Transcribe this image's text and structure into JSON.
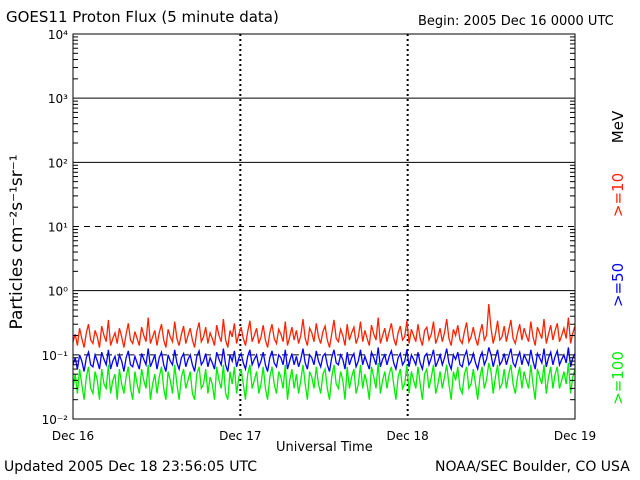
{
  "header": {
    "title": "GOES11 Proton Flux (5 minute data)",
    "begin": "Begin: 2005 Dec 16 0000 UTC"
  },
  "footer": {
    "updated": "Updated 2005 Dec 18 23:56:05 UTC",
    "credit": "NOAA/SEC Boulder, CO USA"
  },
  "chart_data": {
    "type": "line",
    "xlabel": "Universal Time",
    "ylabel": "Particles cm⁻²s⁻¹sr⁻¹",
    "x_ticks": [
      "Dec 16",
      "Dec 17",
      "Dec 18",
      "Dec 19"
    ],
    "y_scale": "log",
    "ylim": [
      0.01,
      10000
    ],
    "y_ticks": [
      "10⁻²",
      "10⁻¹",
      "10⁰",
      "10¹",
      "10²",
      "10³",
      "10⁴"
    ],
    "legend_unit": "MeV",
    "x_days": 3,
    "series": [
      {
        "name": ">=10",
        "color": "#ff2200",
        "values": [
          0.16,
          0.21,
          0.14,
          0.26,
          0.18,
          0.13,
          0.22,
          0.3,
          0.17,
          0.15,
          0.24,
          0.19,
          0.13,
          0.28,
          0.2,
          0.16,
          0.35,
          0.14,
          0.18,
          0.22,
          0.15,
          0.26,
          0.19,
          0.13,
          0.21,
          0.31,
          0.17,
          0.15,
          0.23,
          0.18,
          0.14,
          0.27,
          0.2,
          0.16,
          0.38,
          0.15,
          0.19,
          0.24,
          0.14,
          0.22,
          0.3,
          0.17,
          0.13,
          0.25,
          0.19,
          0.16,
          0.33,
          0.18,
          0.14,
          0.21,
          0.28,
          0.15,
          0.2,
          0.26,
          0.17,
          0.13,
          0.23,
          0.32,
          0.16,
          0.19,
          0.27,
          0.15,
          0.22,
          0.18,
          0.14,
          0.29,
          0.2,
          0.16,
          0.36,
          0.17,
          0.13,
          0.24,
          0.19,
          0.31,
          0.15,
          0.21,
          0.27,
          0.18,
          0.14,
          0.23,
          0.34,
          0.16,
          0.2,
          0.26,
          0.15,
          0.19,
          0.29,
          0.17,
          0.13,
          0.22,
          0.3,
          0.18,
          0.15,
          0.25,
          0.21,
          0.16,
          0.33,
          0.14,
          0.19,
          0.27,
          0.17,
          0.24,
          0.15,
          0.2,
          0.36,
          0.18,
          0.14,
          0.26,
          0.22,
          0.16,
          0.31,
          0.19,
          0.15,
          0.23,
          0.28,
          0.17,
          0.13,
          0.21,
          0.35,
          0.18,
          0.16,
          0.25,
          0.2,
          0.14,
          0.3,
          0.17,
          0.22,
          0.27,
          0.15,
          0.19,
          0.33,
          0.16,
          0.24,
          0.18,
          0.14,
          0.29,
          0.21,
          0.17,
          0.38,
          0.15,
          0.2,
          0.26,
          0.16,
          0.23,
          0.31,
          0.18,
          0.14,
          0.22,
          0.28,
          0.17,
          0.19,
          0.34,
          0.15,
          0.25,
          0.2,
          0.16,
          0.3,
          0.18,
          0.14,
          0.24,
          0.27,
          0.17,
          0.21,
          0.33,
          0.15,
          0.19,
          0.26,
          0.16,
          0.22,
          0.36,
          0.18,
          0.14,
          0.25,
          0.2,
          0.29,
          0.17,
          0.15,
          0.23,
          0.32,
          0.16,
          0.19,
          0.27,
          0.18,
          0.14,
          0.22,
          0.3,
          0.17,
          0.2,
          0.62,
          0.26,
          0.15,
          0.21,
          0.34,
          0.17,
          0.19,
          0.28,
          0.16,
          0.24,
          0.35,
          0.18,
          0.15,
          0.22,
          0.3,
          0.17,
          0.26,
          0.2,
          0.16,
          0.33,
          0.19,
          0.14,
          0.27,
          0.22,
          0.18,
          0.36,
          0.15,
          0.21,
          0.29,
          0.17,
          0.24,
          0.31,
          0.16,
          0.2,
          0.26,
          0.18,
          0.38,
          0.15,
          0.22,
          0.28
        ]
      },
      {
        "name": ">=50",
        "color": "#0000ff",
        "values": [
          0.07,
          0.09,
          0.06,
          0.1,
          0.08,
          0.055,
          0.09,
          0.11,
          0.07,
          0.065,
          0.1,
          0.08,
          0.06,
          0.11,
          0.085,
          0.07,
          0.12,
          0.06,
          0.08,
          0.095,
          0.065,
          0.1,
          0.08,
          0.055,
          0.09,
          0.115,
          0.07,
          0.065,
          0.095,
          0.075,
          0.06,
          0.105,
          0.085,
          0.07,
          0.125,
          0.065,
          0.08,
          0.1,
          0.06,
          0.09,
          0.11,
          0.07,
          0.055,
          0.1,
          0.08,
          0.07,
          0.12,
          0.075,
          0.06,
          0.09,
          0.105,
          0.065,
          0.085,
          0.1,
          0.07,
          0.055,
          0.095,
          0.115,
          0.07,
          0.08,
          0.105,
          0.065,
          0.09,
          0.075,
          0.06,
          0.11,
          0.085,
          0.07,
          0.125,
          0.07,
          0.055,
          0.1,
          0.08,
          0.115,
          0.065,
          0.09,
          0.105,
          0.075,
          0.06,
          0.095,
          0.12,
          0.07,
          0.085,
          0.1,
          0.065,
          0.08,
          0.11,
          0.07,
          0.055,
          0.09,
          0.115,
          0.075,
          0.065,
          0.1,
          0.09,
          0.07,
          0.12,
          0.06,
          0.08,
          0.105,
          0.07,
          0.095,
          0.065,
          0.085,
          0.125,
          0.075,
          0.06,
          0.1,
          0.09,
          0.07,
          0.115,
          0.08,
          0.065,
          0.095,
          0.105,
          0.07,
          0.055,
          0.09,
          0.12,
          0.075,
          0.07,
          0.1,
          0.085,
          0.06,
          0.11,
          0.07,
          0.09,
          0.105,
          0.065,
          0.08,
          0.12,
          0.07,
          0.095,
          0.075,
          0.06,
          0.11,
          0.09,
          0.07,
          0.13,
          0.065,
          0.085,
          0.1,
          0.07,
          0.095,
          0.115,
          0.075,
          0.06,
          0.09,
          0.105,
          0.07,
          0.08,
          0.12,
          0.065,
          0.1,
          0.085,
          0.07,
          0.11,
          0.075,
          0.06,
          0.095,
          0.105,
          0.07,
          0.09,
          0.12,
          0.065,
          0.08,
          0.1,
          0.07,
          0.09,
          0.125,
          0.075,
          0.06,
          0.1,
          0.085,
          0.11,
          0.07,
          0.065,
          0.095,
          0.115,
          0.07,
          0.08,
          0.105,
          0.075,
          0.06,
          0.09,
          0.11,
          0.07,
          0.085,
          0.13,
          0.1,
          0.065,
          0.09,
          0.12,
          0.07,
          0.08,
          0.105,
          0.07,
          0.095,
          0.125,
          0.075,
          0.065,
          0.09,
          0.11,
          0.07,
          0.1,
          0.085,
          0.07,
          0.12,
          0.08,
          0.06,
          0.105,
          0.09,
          0.075,
          0.125,
          0.065,
          0.09,
          0.11,
          0.07,
          0.095,
          0.115,
          0.07,
          0.085,
          0.1,
          0.075,
          0.13,
          0.065,
          0.09,
          0.105
        ]
      },
      {
        "name": ">=100",
        "color": "#00ee00",
        "values": [
          0.03,
          0.05,
          0.025,
          0.06,
          0.035,
          0.02,
          0.045,
          0.065,
          0.03,
          0.025,
          0.055,
          0.04,
          0.02,
          0.06,
          0.035,
          0.03,
          0.07,
          0.025,
          0.04,
          0.05,
          0.02,
          0.06,
          0.035,
          0.025,
          0.045,
          0.065,
          0.03,
          0.02,
          0.055,
          0.035,
          0.025,
          0.06,
          0.04,
          0.03,
          0.07,
          0.02,
          0.035,
          0.05,
          0.025,
          0.045,
          0.065,
          0.03,
          0.02,
          0.055,
          0.04,
          0.025,
          0.07,
          0.035,
          0.02,
          0.045,
          0.06,
          0.03,
          0.04,
          0.055,
          0.025,
          0.02,
          0.05,
          0.065,
          0.03,
          0.035,
          0.06,
          0.025,
          0.045,
          0.035,
          0.02,
          0.065,
          0.04,
          0.03,
          0.07,
          0.025,
          0.02,
          0.055,
          0.035,
          0.065,
          0.025,
          0.045,
          0.06,
          0.035,
          0.02,
          0.05,
          0.07,
          0.03,
          0.04,
          0.055,
          0.025,
          0.035,
          0.065,
          0.03,
          0.02,
          0.045,
          0.065,
          0.035,
          0.025,
          0.055,
          0.045,
          0.03,
          0.07,
          0.02,
          0.04,
          0.06,
          0.03,
          0.05,
          0.025,
          0.04,
          0.07,
          0.035,
          0.02,
          0.055,
          0.045,
          0.03,
          0.065,
          0.035,
          0.025,
          0.05,
          0.06,
          0.03,
          0.02,
          0.045,
          0.07,
          0.035,
          0.03,
          0.055,
          0.04,
          0.02,
          0.065,
          0.03,
          0.045,
          0.06,
          0.025,
          0.035,
          0.07,
          0.03,
          0.05,
          0.035,
          0.02,
          0.065,
          0.045,
          0.03,
          0.075,
          0.025,
          0.04,
          0.055,
          0.03,
          0.05,
          0.065,
          0.035,
          0.02,
          0.045,
          0.06,
          0.03,
          0.035,
          0.07,
          0.025,
          0.055,
          0.04,
          0.03,
          0.065,
          0.035,
          0.02,
          0.05,
          0.06,
          0.03,
          0.045,
          0.07,
          0.025,
          0.035,
          0.055,
          0.03,
          0.045,
          0.07,
          0.035,
          0.02,
          0.055,
          0.04,
          0.065,
          0.03,
          0.025,
          0.05,
          0.065,
          0.03,
          0.035,
          0.06,
          0.035,
          0.02,
          0.045,
          0.065,
          0.03,
          0.04,
          0.075,
          0.055,
          0.025,
          0.045,
          0.07,
          0.03,
          0.035,
          0.06,
          0.03,
          0.05,
          0.07,
          0.035,
          0.025,
          0.045,
          0.065,
          0.03,
          0.055,
          0.04,
          0.03,
          0.07,
          0.035,
          0.02,
          0.06,
          0.045,
          0.035,
          0.07,
          0.025,
          0.045,
          0.065,
          0.03,
          0.05,
          0.065,
          0.03,
          0.04,
          0.055,
          0.035,
          0.075,
          0.025,
          0.045,
          0.06
        ]
      }
    ]
  }
}
